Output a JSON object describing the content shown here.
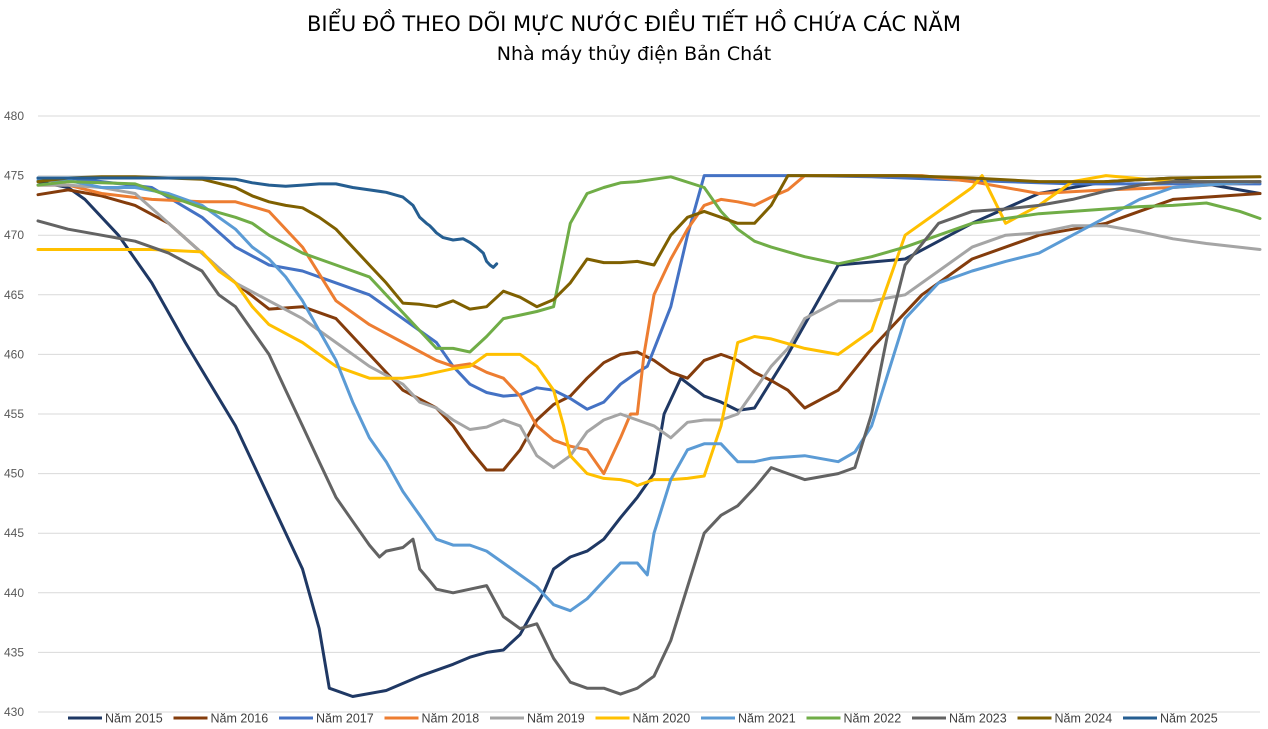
{
  "chart_data": {
    "type": "line",
    "title": "BIỂU ĐỒ THEO DÕI MỰC NƯỚC ĐIỀU TIẾT HỒ CHỨA CÁC NĂM",
    "subtitle": "Nhà máy thủy điện Bản Chát",
    "xlabel": "",
    "ylabel": "",
    "ylim": [
      430,
      480
    ],
    "y_ticks": [
      "430",
      "435",
      "440",
      "445",
      "450",
      "455",
      "460",
      "465",
      "470",
      "475",
      "480"
    ],
    "xlim": [
      1,
      366
    ],
    "grid": true,
    "legend_position": "bottom",
    "series": [
      {
        "name": "Năm 2015",
        "color": "#1f3864",
        "x": [
          1,
          10,
          15,
          25,
          35,
          45,
          60,
          70,
          80,
          85,
          88,
          95,
          105,
          115,
          125,
          130,
          135,
          140,
          145,
          152,
          155,
          160,
          165,
          170,
          175,
          180,
          185,
          188,
          193,
          200,
          205,
          210,
          215,
          225,
          240,
          260,
          280,
          300,
          320,
          340,
          366
        ],
        "y": [
          474.5,
          474,
          473,
          470,
          466,
          461,
          454,
          448,
          442,
          437,
          432,
          431.3,
          431.8,
          433,
          434,
          434.6,
          435,
          435.2,
          436.5,
          440,
          442,
          443,
          443.5,
          444.5,
          446.3,
          448,
          450,
          455,
          458,
          456.5,
          456,
          455.3,
          455.5,
          460,
          467.5,
          468,
          471,
          473.5,
          474.5,
          474.8,
          473.5
        ]
      },
      {
        "name": "Năm 2016",
        "color": "#843c0c",
        "x": [
          1,
          10,
          20,
          30,
          40,
          50,
          60,
          70,
          80,
          90,
          100,
          110,
          120,
          125,
          130,
          135,
          140,
          145,
          150,
          155,
          160,
          165,
          170,
          175,
          180,
          185,
          190,
          195,
          200,
          205,
          210,
          215,
          220,
          225,
          230,
          240,
          250,
          265,
          280,
          300,
          320,
          340,
          366
        ],
        "y": [
          473.4,
          473.8,
          473.3,
          472.5,
          471,
          468.5,
          466,
          463.8,
          464,
          463,
          460,
          457,
          455.5,
          454,
          452,
          450.3,
          450.3,
          452,
          454.5,
          455.8,
          456.5,
          458,
          459.3,
          460,
          460.2,
          459.5,
          458.5,
          458,
          459.5,
          460,
          459.5,
          458.5,
          457.8,
          457,
          455.5,
          457,
          460.5,
          465,
          468,
          470,
          471,
          473,
          473.5
        ]
      },
      {
        "name": "Năm 2017",
        "color": "#4472c4",
        "x": [
          1,
          10,
          20,
          35,
          50,
          60,
          70,
          80,
          90,
          100,
          110,
          120,
          125,
          130,
          135,
          140,
          145,
          150,
          155,
          160,
          165,
          170,
          175,
          180,
          183,
          190,
          195,
          200,
          205,
          215,
          230,
          250,
          270,
          290,
          310,
          330,
          350,
          366
        ],
        "y": [
          474.8,
          474.8,
          474.5,
          474,
          471.5,
          469,
          467.5,
          467,
          466,
          465,
          463,
          461,
          459,
          457.5,
          456.8,
          456.5,
          456.6,
          457.2,
          457,
          456.3,
          455.4,
          456,
          457.5,
          458.5,
          459,
          464,
          470,
          475,
          475,
          475,
          475,
          474.9,
          474.7,
          474.5,
          474.3,
          474.3,
          474.3,
          474.3
        ]
      },
      {
        "name": "Năm 2018",
        "color": "#ed7d31",
        "x": [
          1,
          10,
          20,
          35,
          50,
          60,
          70,
          80,
          90,
          100,
          110,
          120,
          125,
          130,
          135,
          140,
          145,
          150,
          155,
          160,
          165,
          170,
          175,
          178,
          180,
          182,
          185,
          190,
          195,
          200,
          205,
          210,
          215,
          220,
          225,
          230,
          240,
          250,
          265,
          280,
          300,
          320,
          340,
          366
        ],
        "y": [
          474.2,
          474.2,
          473.5,
          473,
          472.8,
          472.8,
          472,
          469,
          464.5,
          462.5,
          461,
          459.5,
          459,
          459.2,
          458.5,
          458,
          456.5,
          454,
          452.8,
          452.3,
          452,
          450,
          453,
          455,
          455,
          460,
          465,
          468,
          470.5,
          472.5,
          473,
          472.8,
          472.5,
          473.2,
          473.8,
          475,
          475,
          475,
          475,
          474.5,
          473.5,
          473.8,
          474,
          474.5
        ]
      },
      {
        "name": "Năm 2019",
        "color": "#a5a5a5",
        "x": [
          1,
          10,
          20,
          30,
          40,
          50,
          60,
          70,
          80,
          90,
          100,
          110,
          115,
          120,
          125,
          130,
          135,
          140,
          145,
          150,
          155,
          160,
          165,
          170,
          175,
          180,
          185,
          190,
          195,
          200,
          205,
          210,
          215,
          220,
          225,
          230,
          240,
          250,
          260,
          270,
          280,
          290,
          300,
          310,
          320,
          330,
          340,
          350,
          366
        ],
        "y": [
          474.2,
          474.2,
          474,
          473.5,
          471,
          468.5,
          466,
          464.5,
          463,
          461,
          459,
          457.5,
          456,
          455.5,
          454.5,
          453.7,
          453.9,
          454.5,
          454,
          451.5,
          450.5,
          451.5,
          453.5,
          454.5,
          455,
          454.5,
          454,
          453,
          454.3,
          454.5,
          454.5,
          455,
          457,
          459,
          460.5,
          463,
          464.5,
          464.5,
          465,
          467,
          469,
          470,
          470.2,
          470.8,
          470.8,
          470.3,
          469.7,
          469.3,
          468.8
        ]
      },
      {
        "name": "Năm 2020",
        "color": "#ffc000",
        "x": [
          1,
          10,
          20,
          35,
          50,
          55,
          60,
          65,
          70,
          80,
          90,
          100,
          105,
          110,
          115,
          120,
          125,
          130,
          135,
          140,
          145,
          150,
          155,
          158,
          160,
          165,
          170,
          175,
          178,
          180,
          185,
          190,
          195,
          200,
          205,
          210,
          215,
          220,
          230,
          240,
          250,
          260,
          270,
          280,
          283,
          290,
          300,
          310,
          320,
          340,
          366
        ],
        "y": [
          468.8,
          468.8,
          468.8,
          468.8,
          468.6,
          467,
          466,
          464,
          462.5,
          461,
          459,
          458,
          458,
          458,
          458.2,
          458.5,
          458.8,
          459,
          460,
          460,
          460,
          459,
          457,
          454,
          451.5,
          450,
          449.6,
          449.5,
          449.3,
          449,
          449.5,
          449.5,
          449.6,
          449.8,
          454,
          461,
          461.5,
          461.3,
          460.5,
          460,
          462,
          470,
          472,
          474,
          475,
          471,
          472.5,
          474.5,
          475,
          474.5,
          474.5
        ]
      },
      {
        "name": "Năm 2021",
        "color": "#5b9bd5",
        "x": [
          1,
          10,
          20,
          30,
          40,
          50,
          60,
          65,
          70,
          75,
          80,
          85,
          90,
          95,
          100,
          105,
          110,
          115,
          120,
          125,
          130,
          135,
          140,
          145,
          150,
          155,
          160,
          165,
          170,
          175,
          180,
          183,
          185,
          190,
          195,
          200,
          205,
          210,
          215,
          220,
          230,
          240,
          245,
          250,
          260,
          270,
          280,
          290,
          300,
          310,
          320,
          330,
          340,
          350,
          366
        ],
        "y": [
          474.6,
          474.6,
          474,
          474,
          473.5,
          472.5,
          470.5,
          469,
          468,
          466.5,
          464.5,
          462,
          459.5,
          456,
          453,
          451,
          448.5,
          446.5,
          444.5,
          444,
          444,
          443.5,
          442.5,
          441.5,
          440.5,
          439,
          438.5,
          439.5,
          441,
          442.5,
          442.5,
          441.5,
          445,
          449.5,
          452,
          452.5,
          452.5,
          451,
          451,
          451.3,
          451.5,
          451,
          451.8,
          454,
          463,
          466,
          467,
          467.8,
          468.5,
          470,
          471.5,
          473,
          474,
          474.2,
          474.5
        ]
      },
      {
        "name": "Năm 2022",
        "color": "#70ad47",
        "x": [
          1,
          10,
          20,
          30,
          40,
          50,
          60,
          65,
          70,
          80,
          90,
          100,
          110,
          120,
          125,
          130,
          135,
          140,
          145,
          150,
          155,
          160,
          165,
          170,
          175,
          180,
          190,
          200,
          205,
          210,
          215,
          220,
          230,
          240,
          250,
          260,
          270,
          280,
          290,
          300,
          310,
          320,
          330,
          340,
          350,
          360,
          366
        ],
        "y": [
          474.2,
          474.5,
          474.4,
          474.3,
          473.3,
          472.3,
          471.5,
          471,
          470,
          468.5,
          467.5,
          466.5,
          463.5,
          460.5,
          460.5,
          460.2,
          461.5,
          463,
          463.3,
          463.6,
          464,
          471,
          473.5,
          474,
          474.4,
          474.5,
          474.9,
          474,
          472,
          470.5,
          469.5,
          469,
          468.2,
          467.6,
          468.2,
          469,
          470,
          471,
          471.4,
          471.8,
          472,
          472.2,
          472.4,
          472.5,
          472.7,
          472,
          471.4
        ]
      },
      {
        "name": "Năm 2023",
        "color": "#636363",
        "x": [
          1,
          10,
          20,
          30,
          40,
          50,
          55,
          60,
          65,
          70,
          75,
          80,
          85,
          90,
          95,
          100,
          103,
          105,
          110,
          113,
          115,
          118,
          120,
          125,
          130,
          135,
          140,
          145,
          150,
          155,
          160,
          165,
          170,
          175,
          180,
          185,
          190,
          195,
          200,
          205,
          210,
          215,
          220,
          225,
          230,
          240,
          245,
          250,
          255,
          260,
          270,
          280,
          290,
          300,
          310,
          320,
          330,
          340,
          350,
          366
        ],
        "y": [
          471.2,
          470.5,
          470,
          469.5,
          468.5,
          467,
          465,
          464,
          462,
          460,
          457,
          454,
          451,
          448,
          446,
          444,
          443,
          443.5,
          443.8,
          444.5,
          442,
          441,
          440.3,
          440,
          440.3,
          440.6,
          438,
          437,
          437.4,
          434.5,
          432.5,
          432,
          432,
          431.5,
          432,
          433,
          436,
          440.5,
          445,
          446.5,
          447.3,
          448.8,
          450.5,
          450,
          449.5,
          450,
          450.5,
          455,
          462,
          467.5,
          471,
          472,
          472.2,
          472.5,
          473,
          473.7,
          474.2,
          474.5,
          474.5,
          474.5
        ]
      },
      {
        "name": "Năm 2024",
        "color": "#7f6000",
        "x": [
          1,
          10,
          20,
          30,
          40,
          50,
          60,
          65,
          70,
          75,
          80,
          85,
          90,
          95,
          100,
          105,
          110,
          115,
          120,
          125,
          130,
          135,
          140,
          145,
          150,
          155,
          160,
          165,
          170,
          175,
          180,
          185,
          190,
          195,
          200,
          205,
          210,
          215,
          220,
          225,
          230,
          240,
          260,
          280,
          300,
          320,
          340,
          366
        ],
        "y": [
          474.5,
          474.8,
          474.9,
          474.9,
          474.8,
          474.7,
          474,
          473.3,
          472.8,
          472.5,
          472.3,
          471.5,
          470.5,
          469,
          467.5,
          466,
          464.3,
          464.2,
          464,
          464.5,
          463.8,
          464,
          465.3,
          464.8,
          464,
          464.6,
          466,
          468,
          467.7,
          467.7,
          467.8,
          467.5,
          470,
          471.5,
          472,
          471.5,
          471,
          471,
          472.5,
          475,
          475,
          475,
          475,
          474.8,
          474.5,
          474.5,
          474.8,
          474.9
        ]
      },
      {
        "name": "Năm 2025",
        "color": "#255e91",
        "x": [
          1,
          10,
          20,
          30,
          40,
          50,
          60,
          65,
          70,
          75,
          80,
          85,
          90,
          95,
          100,
          105,
          110,
          113,
          115,
          117,
          118,
          119,
          120,
          122,
          125,
          128,
          130,
          132,
          134,
          135,
          136,
          137,
          138
        ],
        "y": [
          474.8,
          474.8,
          474.8,
          474.8,
          474.8,
          474.8,
          474.7,
          474.4,
          474.2,
          474.1,
          474.2,
          474.3,
          474.3,
          474,
          473.8,
          473.6,
          473.2,
          472.5,
          471.5,
          471,
          470.8,
          470.5,
          470.2,
          469.8,
          469.6,
          469.7,
          469.4,
          469,
          468.5,
          467.8,
          467.5,
          467.3,
          467.6
        ]
      }
    ]
  }
}
